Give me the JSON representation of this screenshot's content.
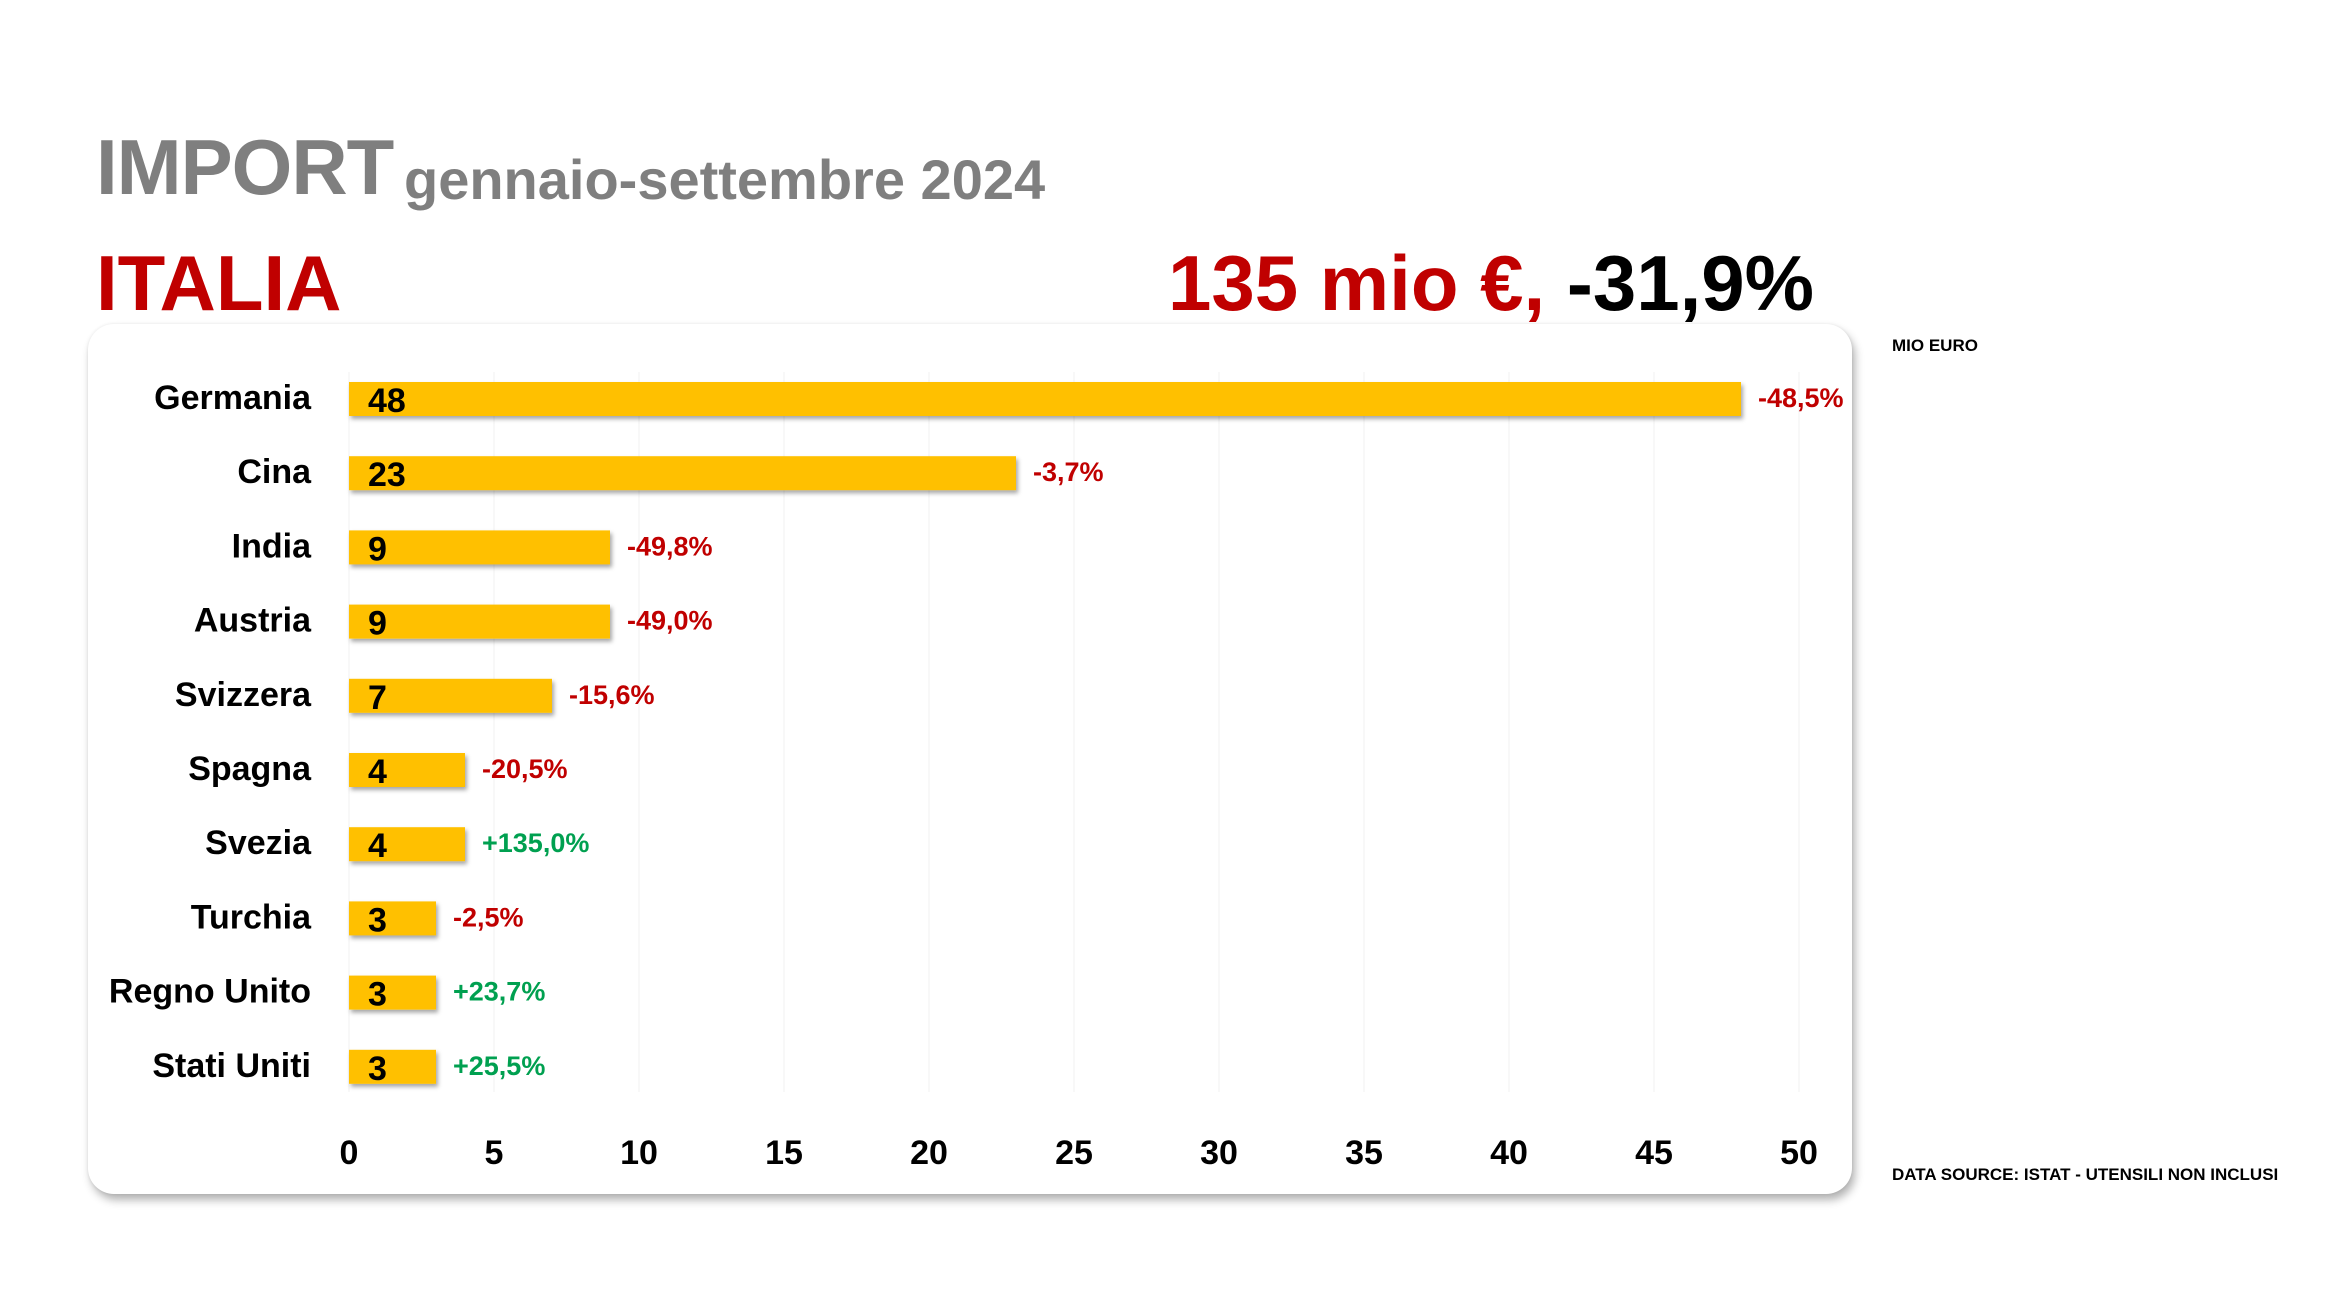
{
  "header": {
    "title": "IMPORT",
    "period": "gennaio-settembre 2024",
    "country": "ITALIA",
    "total_amount": "135 mio €,",
    "total_change": "-31,9%"
  },
  "unit_label": "MIO EURO",
  "source_label": "DATA SOURCE: ISTAT - UTENSILI NON INCLUSI",
  "colors": {
    "bar": "#ffc000",
    "negative": "#c00000",
    "positive": "#00a050",
    "title_gray": "#7f7f7f"
  },
  "chart_data": {
    "type": "bar",
    "orientation": "horizontal",
    "categories": [
      "Germania",
      "Cina",
      "India",
      "Austria",
      "Svizzera",
      "Spagna",
      "Svezia",
      "Turchia",
      "Regno Unito",
      "Stati Uniti"
    ],
    "values": [
      48,
      23,
      9,
      9,
      7,
      4,
      4,
      3,
      3,
      3
    ],
    "value_labels": [
      "48",
      "23",
      "9",
      "9",
      "7",
      "4",
      "4",
      "3",
      "3",
      "3"
    ],
    "changes": [
      "-48,5%",
      "-3,7%",
      "-49,8%",
      "-49,0%",
      "-15,6%",
      "-20,5%",
      "+135,0%",
      "-2,5%",
      "+23,7%",
      "+25,5%"
    ],
    "xlim": [
      0,
      50
    ],
    "xticks": [
      "0",
      "5",
      "10",
      "15",
      "20",
      "25",
      "30",
      "35",
      "40",
      "45",
      "50"
    ],
    "grid": "vertical"
  }
}
